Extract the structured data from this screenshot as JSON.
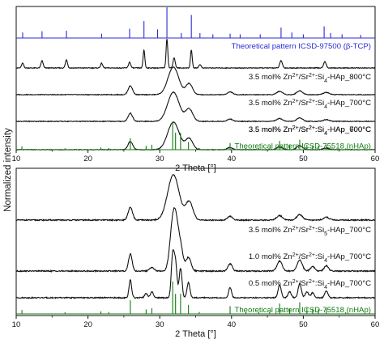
{
  "figure": {
    "ylabel": "Normalized intensity"
  },
  "colors": {
    "sample": "#111111",
    "reference_tcp": "#2b2bd6",
    "reference_hap": "#137a13"
  },
  "chart_data": [
    {
      "type": "line",
      "xlabel": "2 Theta [°]",
      "xlim": [
        10,
        60
      ],
      "xticks": [
        "10",
        "20",
        "30",
        "40",
        "50",
        "60"
      ],
      "yticks": false,
      "stacked": true,
      "series": [
        {
          "name": "Theoretical pattern ICSD-97500 (β-TCP)",
          "color": "#2b2bd6",
          "kind": "sticks",
          "peaks": [
            [
              10.9,
              0.18
            ],
            [
              13.6,
              0.22
            ],
            [
              17.0,
              0.24
            ],
            [
              21.9,
              0.14
            ],
            [
              25.8,
              0.3
            ],
            [
              27.8,
              0.55
            ],
            [
              29.7,
              0.28
            ],
            [
              31.0,
              1.0
            ],
            [
              33.0,
              0.16
            ],
            [
              34.4,
              0.75
            ],
            [
              35.6,
              0.16
            ],
            [
              37.4,
              0.12
            ],
            [
              39.8,
              0.14
            ],
            [
              41.2,
              0.12
            ],
            [
              44.0,
              0.12
            ],
            [
              46.9,
              0.34
            ],
            [
              48.4,
              0.18
            ],
            [
              50.0,
              0.12
            ],
            [
              52.9,
              0.38
            ],
            [
              53.8,
              0.16
            ],
            [
              55.4,
              0.12
            ],
            [
              58.0,
              0.1
            ]
          ]
        },
        {
          "name": "3.5 mol% Zn2+/Sr2+:Si4-HAp_800°C",
          "color": "#111111",
          "kind": "pattern",
          "peaks": [
            [
              10.9,
              0.16,
              0.15
            ],
            [
              13.6,
              0.25,
              0.15
            ],
            [
              17.0,
              0.28,
              0.15
            ],
            [
              21.9,
              0.16,
              0.15
            ],
            [
              25.8,
              0.2,
              0.15
            ],
            [
              27.8,
              0.62,
              0.12
            ],
            [
              31.0,
              1.0,
              0.12
            ],
            [
              32.0,
              0.35,
              0.15
            ],
            [
              34.4,
              0.62,
              0.12
            ],
            [
              35.6,
              0.12,
              0.15
            ],
            [
              46.9,
              0.25,
              0.18
            ],
            [
              53.0,
              0.22,
              0.18
            ]
          ]
        },
        {
          "name": "3.5 mol% Zn2+/Sr2+:Si4-HAp_700°C",
          "color": "#111111",
          "kind": "pattern",
          "peaks": [
            [
              25.9,
              0.32,
              0.3
            ],
            [
              31.9,
              1.0,
              0.75
            ],
            [
              34.1,
              0.4,
              0.45
            ],
            [
              39.8,
              0.1,
              0.35
            ],
            [
              46.7,
              0.12,
              0.4
            ],
            [
              49.5,
              0.14,
              0.4
            ],
            [
              53.2,
              0.08,
              0.4
            ]
          ]
        },
        {
          "name": "3.5 mol% Zn2+/Sr2+:Si4-HAp_700°C",
          "color": "#111111",
          "kind": "pattern",
          "peaks": [
            [
              25.9,
              0.28,
              0.3
            ],
            [
              31.9,
              1.0,
              0.8
            ],
            [
              34.1,
              0.42,
              0.5
            ],
            [
              39.8,
              0.08,
              0.35
            ],
            [
              46.7,
              0.1,
              0.4
            ],
            [
              49.5,
              0.12,
              0.4
            ],
            [
              53.2,
              0.06,
              0.4
            ]
          ]
        },
        {
          "name": "3.5 mol% Zn2+/Sr2+:Si4-HAp_600°C",
          "color": "#111111",
          "kind": "pattern",
          "peaks": [
            [
              25.9,
              0.3,
              0.32
            ],
            [
              31.9,
              1.0,
              0.8
            ],
            [
              34.1,
              0.4,
              0.5
            ],
            [
              39.8,
              0.08,
              0.35
            ],
            [
              46.7,
              0.1,
              0.4
            ],
            [
              49.5,
              0.14,
              0.4
            ],
            [
              53.2,
              0.06,
              0.4
            ]
          ]
        },
        {
          "name": "Theoretical pattern ICSD-75518 (nHAp)",
          "color": "#137a13",
          "kind": "sticks",
          "peaks": [
            [
              10.8,
              0.12
            ],
            [
              16.8,
              0.05
            ],
            [
              21.8,
              0.08
            ],
            [
              22.9,
              0.06
            ],
            [
              25.9,
              0.42
            ],
            [
              28.1,
              0.14
            ],
            [
              28.9,
              0.18
            ],
            [
              31.8,
              1.0
            ],
            [
              32.2,
              0.62
            ],
            [
              32.9,
              0.62
            ],
            [
              34.0,
              0.28
            ],
            [
              35.5,
              0.06
            ],
            [
              39.8,
              0.24
            ],
            [
              42.0,
              0.06
            ],
            [
              43.8,
              0.06
            ],
            [
              45.3,
              0.05
            ],
            [
              46.7,
              0.32
            ],
            [
              48.1,
              0.16
            ],
            [
              49.5,
              0.36
            ],
            [
              50.5,
              0.18
            ],
            [
              51.3,
              0.16
            ],
            [
              52.1,
              0.14
            ],
            [
              53.2,
              0.18
            ],
            [
              55.9,
              0.05
            ]
          ]
        }
      ]
    },
    {
      "type": "line",
      "xlabel": "2 Theta [°]",
      "xlim": [
        10,
        60
      ],
      "xticks": [
        "10",
        "20",
        "30",
        "40",
        "50",
        "60"
      ],
      "yticks": false,
      "stacked": true,
      "series": [
        {
          "name": "3.5 mol% Zn2+/Sr2+:Si5-HAp_700°C",
          "color": "#111111",
          "kind": "pattern",
          "peaks": [
            [
              25.9,
              0.28,
              0.3
            ],
            [
              31.9,
              1.0,
              0.8
            ],
            [
              34.1,
              0.4,
              0.5
            ],
            [
              39.8,
              0.08,
              0.35
            ],
            [
              46.7,
              0.1,
              0.4
            ],
            [
              49.5,
              0.12,
              0.4
            ],
            [
              53.2,
              0.06,
              0.4
            ]
          ]
        },
        {
          "name": "1.0 mol% Zn2+/Sr2+:Si4-HAp_700°C",
          "color": "#111111",
          "kind": "pattern",
          "peaks": [
            [
              25.9,
              0.38,
              0.25
            ],
            [
              28.9,
              0.08,
              0.3
            ],
            [
              31.8,
              1.0,
              0.4
            ],
            [
              32.3,
              0.7,
              0.35
            ],
            [
              32.9,
              0.5,
              0.35
            ],
            [
              34.0,
              0.3,
              0.35
            ],
            [
              39.8,
              0.16,
              0.3
            ],
            [
              46.7,
              0.22,
              0.35
            ],
            [
              49.5,
              0.24,
              0.35
            ],
            [
              51.3,
              0.1,
              0.3
            ],
            [
              53.2,
              0.12,
              0.3
            ]
          ]
        },
        {
          "name": "0.5 mol% Zn2+/Sr2+:Si4-HAp_700°C",
          "color": "#111111",
          "kind": "pattern",
          "peaks": [
            [
              25.9,
              0.42,
              0.18
            ],
            [
              28.1,
              0.1,
              0.2
            ],
            [
              28.9,
              0.14,
              0.2
            ],
            [
              31.8,
              1.0,
              0.2
            ],
            [
              32.2,
              0.8,
              0.2
            ],
            [
              32.9,
              0.7,
              0.2
            ],
            [
              34.0,
              0.36,
              0.2
            ],
            [
              39.8,
              0.24,
              0.2
            ],
            [
              46.7,
              0.3,
              0.22
            ],
            [
              48.1,
              0.14,
              0.22
            ],
            [
              49.5,
              0.34,
              0.22
            ],
            [
              50.5,
              0.14,
              0.22
            ],
            [
              51.3,
              0.12,
              0.22
            ],
            [
              53.2,
              0.16,
              0.22
            ]
          ]
        },
        {
          "name": "Theoretical pattern ICSD-75518 (nHAp)",
          "color": "#137a13",
          "kind": "sticks",
          "peaks": [
            [
              10.8,
              0.12
            ],
            [
              16.8,
              0.05
            ],
            [
              21.8,
              0.08
            ],
            [
              22.9,
              0.06
            ],
            [
              25.9,
              0.42
            ],
            [
              28.1,
              0.14
            ],
            [
              28.9,
              0.18
            ],
            [
              31.8,
              1.0
            ],
            [
              32.2,
              0.62
            ],
            [
              32.9,
              0.62
            ],
            [
              34.0,
              0.28
            ],
            [
              35.5,
              0.06
            ],
            [
              39.8,
              0.24
            ],
            [
              42.0,
              0.06
            ],
            [
              43.8,
              0.06
            ],
            [
              45.3,
              0.05
            ],
            [
              46.7,
              0.32
            ],
            [
              48.1,
              0.16
            ],
            [
              49.5,
              0.36
            ],
            [
              50.5,
              0.18
            ],
            [
              51.3,
              0.16
            ],
            [
              52.1,
              0.14
            ],
            [
              53.2,
              0.18
            ],
            [
              55.9,
              0.05
            ]
          ]
        }
      ]
    }
  ]
}
